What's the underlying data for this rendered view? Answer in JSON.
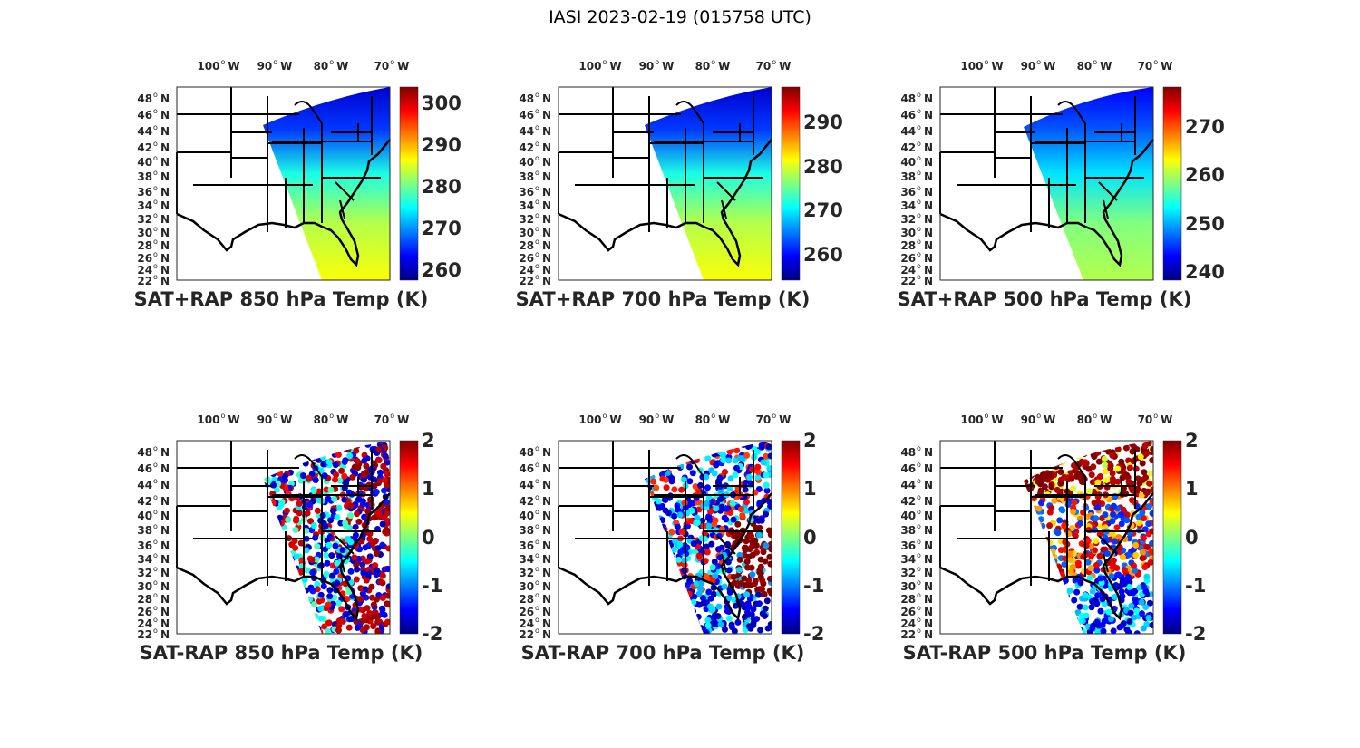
{
  "figure_title": "IASI 2023-02-19 (015758 UTC)",
  "colormap": "jet",
  "lon_labels": [
    "100",
    "90",
    "80",
    "70"
  ],
  "lon_suffix": "W",
  "lat_labels": [
    "48",
    "46",
    "44",
    "42",
    "40",
    "38",
    "36",
    "34",
    "32",
    "30",
    "28",
    "26",
    "24",
    "22"
  ],
  "lat_suffix": "N",
  "panels": [
    {
      "title": "SAT+RAP 850 hPa Temp (K)",
      "clim": [
        257.6,
        303.9
      ],
      "ticks": [
        "260",
        "270",
        "280",
        "290",
        "300"
      ],
      "kind": "temp"
    },
    {
      "title": "SAT+RAP 700 hPa Temp (K)",
      "clim": [
        254.3,
        298.0
      ],
      "ticks": [
        "260",
        "270",
        "280",
        "290"
      ],
      "kind": "temp"
    },
    {
      "title": "SAT+RAP 500 hPa Temp (K)",
      "clim": [
        238.3,
        278.3
      ],
      "ticks": [
        "240",
        "250",
        "260",
        "270"
      ],
      "kind": "temp"
    },
    {
      "title": "SAT-RAP 850 hPa Temp (K)",
      "clim": [
        -2,
        2
      ],
      "ticks": [
        "-2",
        "-1",
        "0",
        "1",
        "2"
      ],
      "kind": "diff"
    },
    {
      "title": "SAT-RAP 700 hPa Temp (K)",
      "clim": [
        -2,
        2
      ],
      "ticks": [
        "-2",
        "-1",
        "0",
        "1",
        "2"
      ],
      "kind": "diff"
    },
    {
      "title": "SAT-RAP 500 hPa Temp (K)",
      "clim": [
        -2,
        2
      ],
      "ticks": [
        "-2",
        "-1",
        "0",
        "1",
        "2"
      ],
      "kind": "diff"
    }
  ]
}
